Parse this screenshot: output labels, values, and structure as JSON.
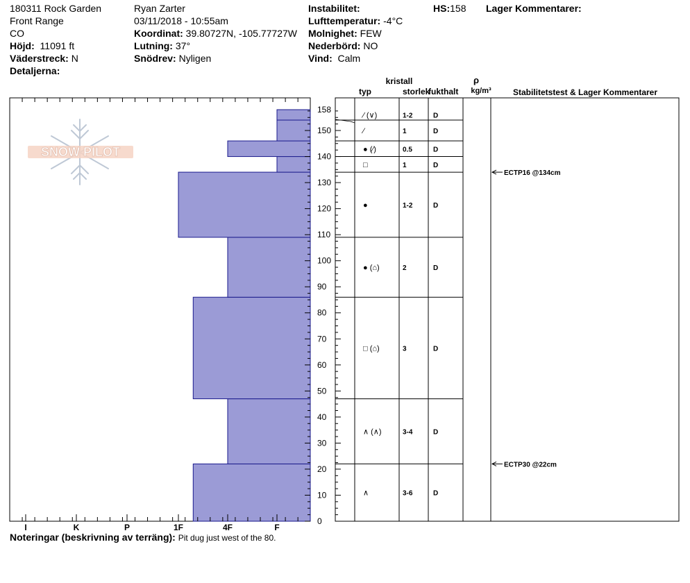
{
  "header": {
    "site": "180311 Rock Garden",
    "range": "Front Range",
    "state": "CO",
    "elevation_label": "Höjd:",
    "elevation": "11091 ft",
    "aspect_label": "Väderstreck:",
    "aspect": "N",
    "details_label": "Detaljerna:",
    "observer": "Ryan Zarter",
    "datetime": "03/11/2018 - 10:55am",
    "coord_label": "Koordinat:",
    "coord": "39.80727N, -105.77727W",
    "slope_label": "Lutning:",
    "slope": "37°",
    "wind_loading_label": "Snödrev:",
    "wind_loading": "Nyligen",
    "instability_label": "Instabilitet:",
    "instability": "",
    "air_temp_label": "Lufttemperatur:",
    "air_temp": "-4°C",
    "sky_label": "Molnighet:",
    "sky": "FEW",
    "precip_label": "Nederbörd:",
    "precip": "NO",
    "wind_label": "Vind:",
    "wind": "Calm",
    "hs_label": "HS:",
    "hs": "158",
    "layer_comments_label": "Lager Kommentarer:"
  },
  "notes": {
    "label": "Noteringar (beskrivning av terräng):",
    "text": "Pit dug just west of the 80."
  },
  "logo": {
    "text": "SNOW PILOT"
  },
  "columns": {
    "crystal": "kristall",
    "type": "typ",
    "size": "storlek",
    "moisture": "fukthalt",
    "density_symbol": "ρ",
    "density_unit": "kg/m³",
    "stability": "Stabilitetstest & Lager Kommentarer"
  },
  "chart_data": {
    "type": "bar",
    "title": "",
    "xlabel": "",
    "ylabel": "",
    "ylim": [
      0,
      158
    ],
    "hardness_scale": [
      "I",
      "K",
      "P",
      "1F",
      "4F",
      "F"
    ],
    "y_ticks": [
      0,
      10,
      20,
      30,
      40,
      50,
      60,
      70,
      80,
      90,
      100,
      110,
      120,
      130,
      140,
      150,
      158
    ],
    "layers": [
      {
        "bottom": 0,
        "top": 22,
        "hardness": "1F+",
        "hardness_index": 3.3,
        "grain": "∧",
        "size": "3-6",
        "moisture": "D"
      },
      {
        "bottom": 22,
        "top": 47,
        "hardness": "4F",
        "hardness_index": 4.0,
        "grain": "∧ (∧)",
        "size": "3-4",
        "moisture": "D"
      },
      {
        "bottom": 47,
        "top": 86,
        "hardness": "1F+",
        "hardness_index": 3.3,
        "grain": "□ (⌂)",
        "size": "3",
        "moisture": "D"
      },
      {
        "bottom": 86,
        "top": 109,
        "hardness": "4F",
        "hardness_index": 4.0,
        "grain": "● (⌂)",
        "size": "2",
        "moisture": "D"
      },
      {
        "bottom": 109,
        "top": 134,
        "hardness": "1F",
        "hardness_index": 3.0,
        "grain": "●",
        "size": "1-2",
        "moisture": "D"
      },
      {
        "bottom": 134,
        "top": 140,
        "hardness": "F",
        "hardness_index": 5.0,
        "grain": "□",
        "size": "1",
        "moisture": "D"
      },
      {
        "bottom": 140,
        "top": 146,
        "hardness": "4F",
        "hardness_index": 4.0,
        "grain": "● (⁄)",
        "size": "0.5",
        "moisture": "D"
      },
      {
        "bottom": 146,
        "top": 154,
        "hardness": "F",
        "hardness_index": 5.0,
        "grain": "⁄",
        "size": "1",
        "moisture": "D"
      },
      {
        "bottom": 154,
        "top": 158,
        "hardness": "F",
        "hardness_index": 5.0,
        "grain": "⁄ (∨)",
        "size": "1-2",
        "moisture": "D"
      }
    ],
    "stability_tests": [
      {
        "depth": 134,
        "label": "ECTP16 @134cm"
      },
      {
        "depth": 22,
        "label": "ECTP30 @22cm"
      }
    ],
    "colors": {
      "fill": "#9b9bd6",
      "stroke": "#1a1a8c"
    }
  }
}
